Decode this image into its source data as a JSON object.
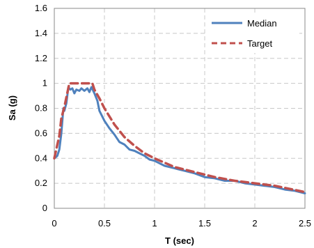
{
  "chart_data": {
    "type": "line",
    "xlabel": "T (sec)",
    "ylabel": "Sa (g)",
    "xlim": [
      0,
      2.5
    ],
    "ylim": [
      0,
      1.6
    ],
    "xticks": [
      "0",
      "0.5",
      "1",
      "1.5",
      "2",
      "2.5"
    ],
    "yticks": [
      "0",
      "0.2",
      "0.4",
      "0.6",
      "0.8",
      "1",
      "1.2",
      "1.4",
      "1.6"
    ],
    "grid": true,
    "legend_position": "top-right",
    "series": [
      {
        "name": "Median",
        "color": "#4f81bd",
        "style": "solid",
        "x": [
          0,
          0.03,
          0.05,
          0.07,
          0.09,
          0.1,
          0.12,
          0.14,
          0.16,
          0.18,
          0.2,
          0.22,
          0.25,
          0.27,
          0.3,
          0.33,
          0.35,
          0.37,
          0.4,
          0.43,
          0.45,
          0.5,
          0.55,
          0.6,
          0.65,
          0.7,
          0.75,
          0.8,
          0.85,
          0.9,
          0.95,
          1.0,
          1.1,
          1.2,
          1.3,
          1.4,
          1.5,
          1.6,
          1.7,
          1.8,
          1.9,
          2.0,
          2.1,
          2.2,
          2.3,
          2.4,
          2.5
        ],
        "y": [
          0.4,
          0.42,
          0.47,
          0.6,
          0.8,
          0.78,
          0.84,
          0.97,
          0.95,
          0.96,
          0.92,
          0.95,
          0.94,
          0.96,
          0.94,
          0.96,
          0.93,
          0.97,
          0.92,
          0.86,
          0.78,
          0.7,
          0.64,
          0.59,
          0.53,
          0.51,
          0.47,
          0.46,
          0.44,
          0.42,
          0.39,
          0.38,
          0.34,
          0.32,
          0.3,
          0.28,
          0.25,
          0.24,
          0.22,
          0.22,
          0.2,
          0.19,
          0.18,
          0.17,
          0.15,
          0.14,
          0.12
        ]
      },
      {
        "name": "Target",
        "color": "#c0504d",
        "style": "dashed",
        "x": [
          0,
          0.05,
          0.07,
          0.1,
          0.15,
          0.2,
          0.25,
          0.3,
          0.35,
          0.38,
          0.4,
          0.45,
          0.5,
          0.6,
          0.7,
          0.8,
          0.9,
          1.0,
          1.2,
          1.4,
          1.6,
          1.8,
          2.0,
          2.2,
          2.5
        ],
        "y": [
          0.4,
          0.58,
          0.72,
          0.81,
          1.0,
          1.0,
          1.0,
          1.0,
          1.0,
          1.0,
          0.95,
          0.88,
          0.8,
          0.67,
          0.57,
          0.5,
          0.44,
          0.4,
          0.33,
          0.29,
          0.25,
          0.22,
          0.2,
          0.18,
          0.13
        ]
      }
    ]
  }
}
